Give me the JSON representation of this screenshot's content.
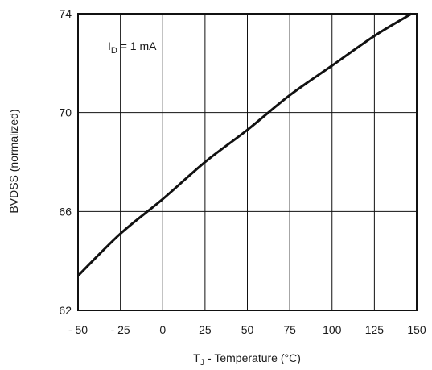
{
  "chart_data": {
    "type": "line",
    "title": "",
    "xlabel": "T_J - Temperature (°C)",
    "xlabel_main": "T",
    "xlabel_sub": "J",
    "xlabel_rest": " - Temperature (°C)",
    "ylabel": "BVDSS (normalized)",
    "annotation": "I_D = 1 mA",
    "annotation_main": "I",
    "annotation_sub": "D",
    "annotation_rest": " = 1 mA",
    "xlim": [
      -50,
      150
    ],
    "ylim": [
      62,
      74
    ],
    "x_ticks": [
      -50,
      -25,
      0,
      25,
      50,
      75,
      100,
      125,
      150
    ],
    "x_tick_labels": [
      "- 50",
      "- 25",
      "0",
      "25",
      "50",
      "75",
      "100",
      "125",
      "150"
    ],
    "y_ticks": [
      62,
      66,
      70,
      74
    ],
    "y_tick_labels": [
      "62",
      "66",
      "70",
      "74"
    ],
    "grid": true,
    "series": [
      {
        "x": [
          -50,
          -25,
          0,
          25,
          50,
          75,
          100,
          125,
          147
        ],
        "y": [
          63.4,
          65.1,
          66.5,
          68.0,
          69.3,
          70.7,
          71.9,
          73.1,
          74.0
        ]
      }
    ]
  }
}
